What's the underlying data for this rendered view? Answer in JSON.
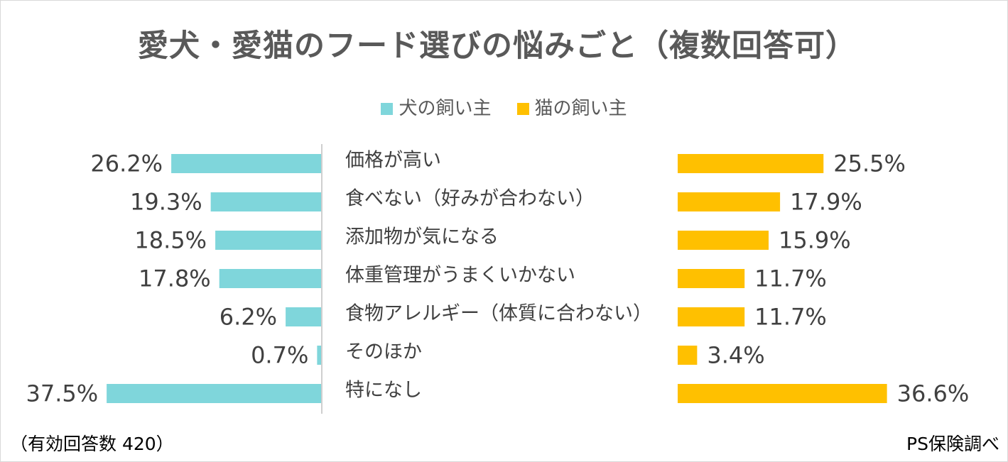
{
  "chart_data": {
    "type": "bar",
    "orientation": "horizontal-butterfly",
    "title": "愛犬・愛猫のフード選びの悩みごと（複数回答可）",
    "categories": [
      "価格が高い",
      "食べない（好みが合わない）",
      "添加物が気になる",
      "体重管理がうまくいかない",
      "食物アレルギー（体質に合わない）",
      "そのほか",
      "特になし"
    ],
    "series": [
      {
        "name": "犬の飼い主",
        "color": "#7fd6db",
        "values": [
          26.2,
          19.3,
          18.5,
          17.8,
          6.2,
          0.7,
          37.5
        ],
        "labels": [
          "26.2%",
          "19.3%",
          "18.5%",
          "17.8%",
          "6.2%",
          "0.7%",
          "37.5%"
        ]
      },
      {
        "name": "猫の飼い主",
        "color": "#ffc000",
        "values": [
          25.5,
          17.9,
          15.9,
          11.7,
          11.7,
          3.4,
          36.6
        ],
        "labels": [
          "25.5%",
          "17.9%",
          "15.9%",
          "11.7%",
          "11.7%",
          "3.4%",
          "36.6%"
        ]
      }
    ],
    "xlim": [
      0,
      40
    ],
    "unit": "%",
    "legend_position": "top-center"
  },
  "footer": {
    "note": "（有効回答数 420）",
    "source": "PS保険調べ"
  }
}
